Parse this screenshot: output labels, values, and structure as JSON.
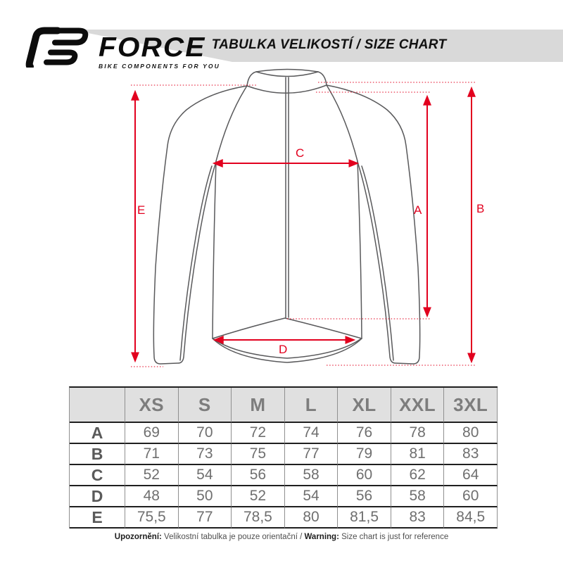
{
  "header": {
    "brand": "FORCE",
    "tagline": "BIKE COMPONENTS FOR YOU",
    "title": "TABULKA VELIKOSTÍ / SIZE CHART"
  },
  "diagram": {
    "arrow_color": "#e2001e",
    "outline_color": "#59595b",
    "labels": {
      "A": "A",
      "B": "B",
      "C": "C",
      "D": "D",
      "E": "E"
    }
  },
  "table": {
    "col_headers": [
      "",
      "XS",
      "S",
      "M",
      "L",
      "XL",
      "XXL",
      "3XL"
    ],
    "rows": [
      {
        "label": "A",
        "values": [
          "69",
          "70",
          "72",
          "74",
          "76",
          "78",
          "80"
        ]
      },
      {
        "label": "B",
        "values": [
          "71",
          "73",
          "75",
          "77",
          "79",
          "81",
          "83"
        ]
      },
      {
        "label": "C",
        "values": [
          "52",
          "54",
          "56",
          "58",
          "60",
          "62",
          "64"
        ]
      },
      {
        "label": "D",
        "values": [
          "48",
          "50",
          "52",
          "54",
          "56",
          "58",
          "60"
        ]
      },
      {
        "label": "E",
        "values": [
          "75,5",
          "77",
          "78,5",
          "80",
          "81,5",
          "83",
          "84,5"
        ]
      }
    ]
  },
  "warning": {
    "label_cs": "Upozornění:",
    "text_cs": " Velikostní tabulka je pouze orientační / ",
    "label_en": "Warning:",
    "text_en": " Size chart is just for reference"
  }
}
